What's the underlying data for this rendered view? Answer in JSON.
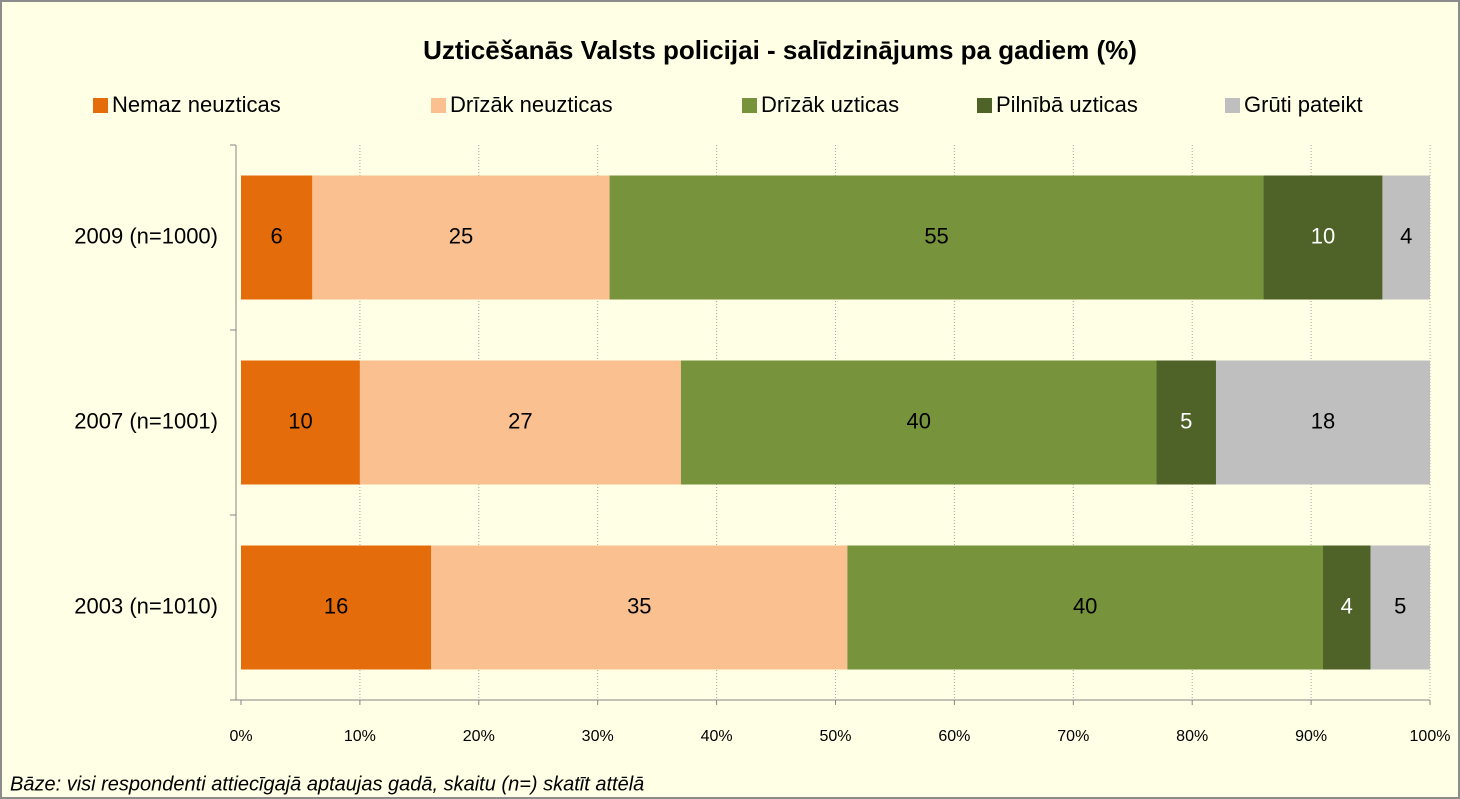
{
  "chart_data": {
    "type": "stacked_barh",
    "title": "Uzticēšanās Valsts policijai - salīdzinājums pa gadiem (%)",
    "categories": [
      "2009 (n=1000)",
      "2007 (n=1001)",
      "2003 (n=1010)"
    ],
    "series": [
      {
        "name": "Nemaz neuzticas",
        "color": "#e46c0a",
        "values": [
          6,
          10,
          16
        ]
      },
      {
        "name": "Drīzāk neuzticas",
        "color": "#fac090",
        "values": [
          25,
          27,
          35
        ]
      },
      {
        "name": "Drīzāk uzticas",
        "color": "#77933c",
        "values": [
          55,
          40,
          40
        ]
      },
      {
        "name": "Pilnībā uzticas",
        "color": "#4f6228",
        "values": [
          10,
          5,
          4
        ]
      },
      {
        "name": "Grūti pateikt",
        "color": "#bfbfbf",
        "values": [
          4,
          18,
          5
        ]
      }
    ],
    "xlim": [
      0,
      100
    ],
    "xticks": [
      {
        "value": 0,
        "label": "0%"
      },
      {
        "value": 10,
        "label": "10%"
      },
      {
        "value": 20,
        "label": "20%"
      },
      {
        "value": 30,
        "label": "30%"
      },
      {
        "value": 40,
        "label": "40%"
      },
      {
        "value": 50,
        "label": "50%"
      },
      {
        "value": 60,
        "label": "60%"
      },
      {
        "value": 70,
        "label": "70%"
      },
      {
        "value": 80,
        "label": "80%"
      },
      {
        "value": 90,
        "label": "90%"
      },
      {
        "value": 100,
        "label": "100%"
      }
    ],
    "grid": true,
    "legend": "top",
    "footnote": "Bāze: visi respondenti attiecīgajā aptaujas gadā, skaitu (n=) skatīt attēlā"
  }
}
